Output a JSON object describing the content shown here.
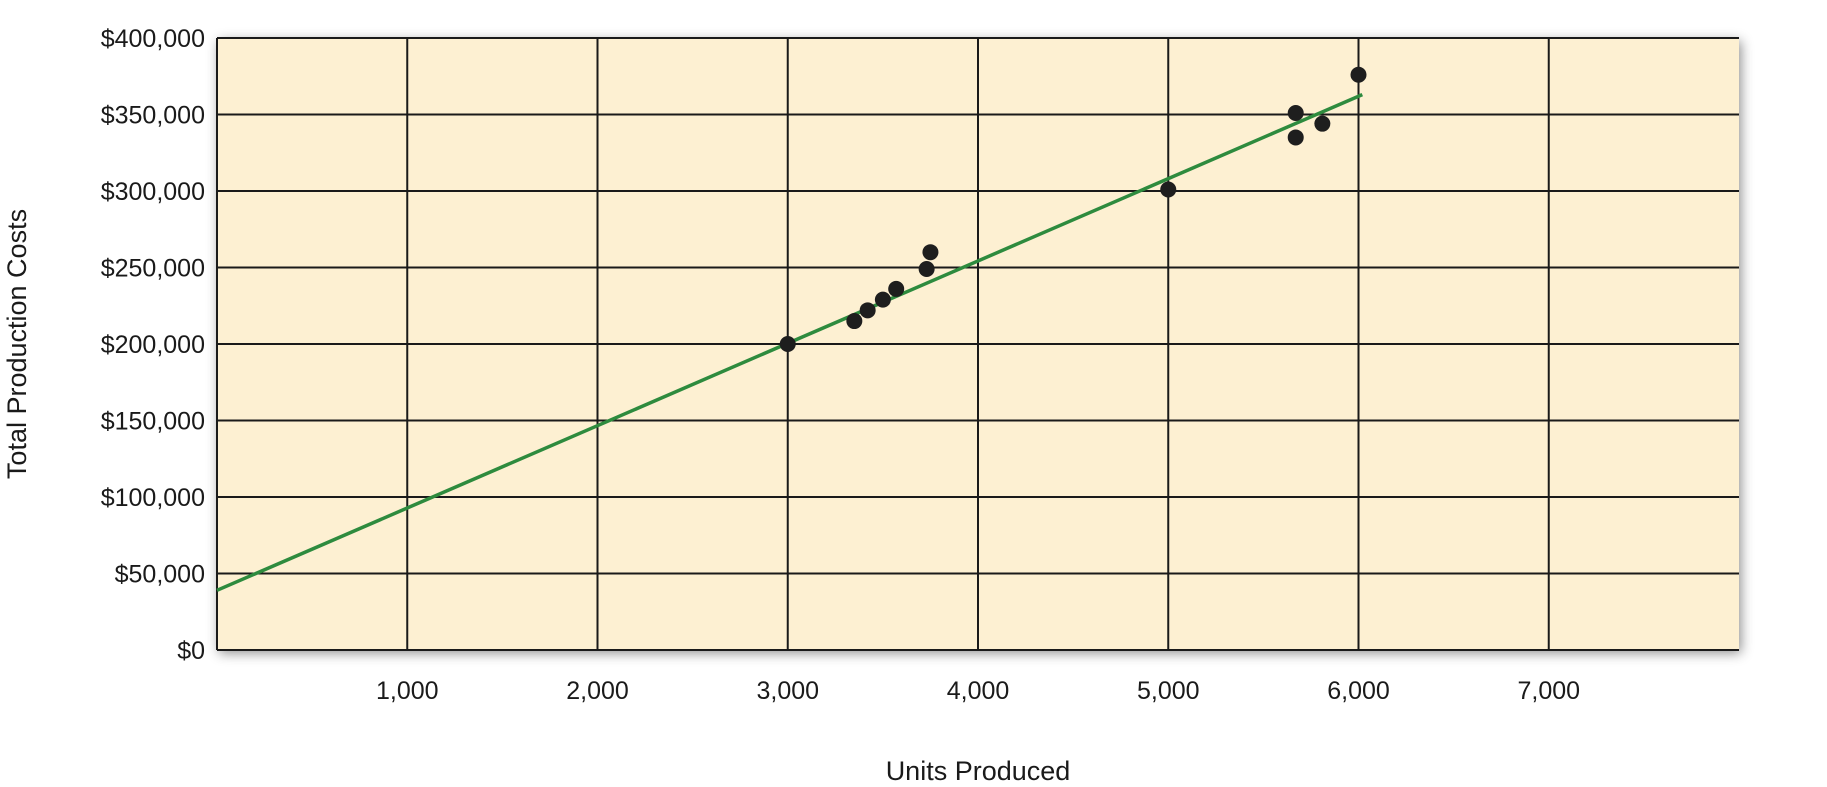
{
  "chart_data": {
    "type": "scatter",
    "title": "",
    "xlabel": "Units Produced",
    "ylabel": "Total Production Costs",
    "xlim": [
      0,
      8000
    ],
    "ylim": [
      0,
      400000
    ],
    "x_ticks": [
      1000,
      2000,
      3000,
      4000,
      5000,
      6000,
      7000
    ],
    "x_tick_labels": [
      "1,000",
      "2,000",
      "3,000",
      "4,000",
      "5,000",
      "6,000",
      "7,000"
    ],
    "y_ticks": [
      0,
      50000,
      100000,
      150000,
      200000,
      250000,
      300000,
      350000,
      400000
    ],
    "y_tick_labels": [
      "$0",
      "$50,000",
      "$100,000",
      "$150,000",
      "$200,000",
      "$250,000",
      "$300,000",
      "$350,000",
      "$400,000"
    ],
    "grid": true,
    "legend": "none",
    "colors": {
      "plot_background": "#fdf0d2",
      "fit_line": "#2e8b3e",
      "points": "#1e1e1e",
      "grid": "#1a1a1a"
    },
    "points": [
      {
        "x": 3000,
        "y": 200000
      },
      {
        "x": 3350,
        "y": 215000
      },
      {
        "x": 3420,
        "y": 222000
      },
      {
        "x": 3500,
        "y": 229000
      },
      {
        "x": 3570,
        "y": 236000
      },
      {
        "x": 3730,
        "y": 249000
      },
      {
        "x": 3750,
        "y": 260000
      },
      {
        "x": 5000,
        "y": 301000
      },
      {
        "x": 5670,
        "y": 335000
      },
      {
        "x": 5670,
        "y": 351000
      },
      {
        "x": 5810,
        "y": 344000
      },
      {
        "x": 6000,
        "y": 376000
      }
    ],
    "fit_line": {
      "x_start": 0,
      "y_start": 39000,
      "x_end": 6020,
      "y_end": 363000
    }
  }
}
